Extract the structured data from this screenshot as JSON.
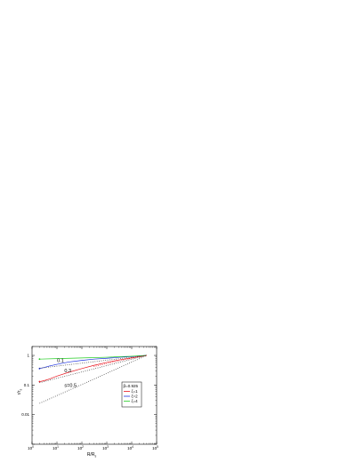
{
  "chart_data": {
    "type": "line",
    "xscale": "log",
    "yscale": "log",
    "xlim": [
      1,
      100000
    ],
    "ylim": [
      0.001,
      2
    ],
    "grid": false,
    "xlabel_main": "R/R",
    "xlabel_sub": "s",
    "ylabel_main": "r/r",
    "ylabel_sub": "s",
    "xticks": [
      {
        "value": 1,
        "base": "10",
        "exp": "0"
      },
      {
        "value": 10,
        "base": "10",
        "exp": "1"
      },
      {
        "value": 100,
        "base": "10",
        "exp": "2"
      },
      {
        "value": 1000,
        "base": "10",
        "exp": "3"
      },
      {
        "value": 10000,
        "base": "10",
        "exp": "4"
      },
      {
        "value": 100000,
        "base": "10",
        "exp": "5"
      }
    ],
    "yticks": [
      {
        "value": 0.01,
        "label": "0.01"
      },
      {
        "value": 0.1,
        "label": "0.1"
      },
      {
        "value": 1,
        "label": "1"
      }
    ],
    "legend": {
      "placement": "right",
      "title": "β=0.925",
      "entries": [
        {
          "label": "ζ=1",
          "color": "#e8141e"
        },
        {
          "label": "ζ=2",
          "color": "#1a2ee0"
        },
        {
          "label": "ζ=4",
          "color": "#22cc22"
        }
      ]
    },
    "series": [
      {
        "label": "ζ=1",
        "color": "#e8141e",
        "style": "solid",
        "x": [
          2,
          3,
          5,
          10,
          30,
          100,
          300,
          1000,
          3000,
          10000,
          40000
        ],
        "y": [
          0.13,
          0.14,
          0.16,
          0.2,
          0.27,
          0.36,
          0.46,
          0.58,
          0.7,
          0.83,
          1.0
        ]
      },
      {
        "label": "ζ=2",
        "color": "#1a2ee0",
        "style": "solid",
        "x": [
          2,
          3,
          5,
          10,
          30,
          100,
          300,
          1000,
          3000,
          10000,
          40000
        ],
        "y": [
          0.36,
          0.39,
          0.44,
          0.5,
          0.6,
          0.68,
          0.75,
          0.8,
          0.86,
          0.92,
          1.0
        ]
      },
      {
        "label": "ζ=4",
        "color": "#22cc22",
        "style": "solid",
        "x": [
          2,
          10,
          100,
          1000,
          10000,
          40000
        ],
        "y": [
          0.75,
          0.78,
          0.82,
          0.87,
          0.94,
          1.0
        ]
      },
      {
        "label": "0.1",
        "color": "#333333",
        "style": "dotted",
        "x": [
          2,
          40000
        ],
        "y": [
          0.37,
          1.0
        ]
      },
      {
        "label": "0.3",
        "color": "#333333",
        "style": "dotted",
        "x": [
          2,
          40000
        ],
        "y": [
          0.12,
          1.0
        ]
      },
      {
        "label": "s=0.5",
        "color": "#333333",
        "style": "dotted",
        "x": [
          2,
          40000
        ],
        "y": [
          0.024,
          1.0
        ]
      },
      {
        "label": "",
        "color": "#e8141e",
        "style": "dotted",
        "x": [
          300,
          1000,
          3000,
          10000,
          40000
        ],
        "y": [
          0.42,
          0.53,
          0.65,
          0.8,
          1.0
        ]
      }
    ],
    "annotations": [
      {
        "text": "0.1",
        "x": 10,
        "y": 0.6
      },
      {
        "text": "0.3",
        "x": 20,
        "y": 0.27
      },
      {
        "text": "s=0.5",
        "x": 20,
        "y": 0.085
      }
    ]
  }
}
